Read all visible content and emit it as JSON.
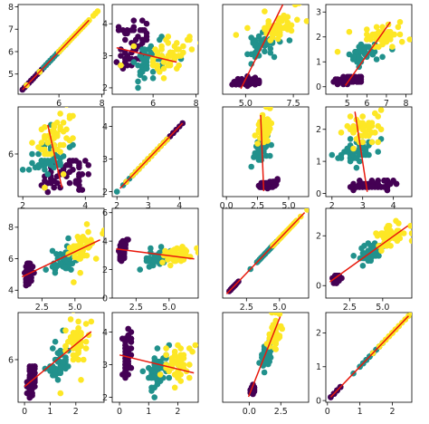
{
  "figure": {
    "class_colors": [
      "#440154",
      "#21918c",
      "#fde725"
    ],
    "fit_line_color": "#e8190c"
  },
  "chart_data": [
    {
      "type": "scatter",
      "row": 0,
      "col": 0,
      "x_var": 0,
      "y_var": 0,
      "xlim": [
        4.1,
        8.1
      ],
      "ylim": [
        4.1,
        8.1
      ],
      "xticks": [
        {
          "v": 6,
          "label": "6"
        },
        {
          "v": 8,
          "label": "8"
        }
      ],
      "yticks": [
        {
          "v": 5,
          "label": "5"
        },
        {
          "v": 6,
          "label": "6"
        },
        {
          "v": 7,
          "label": "7"
        },
        {
          "v": 8,
          "label": "8"
        }
      ],
      "fit": [
        [
          4.3,
          4.3
        ],
        [
          7.4,
          7.4
        ]
      ]
    },
    {
      "type": "scatter",
      "row": 0,
      "col": 1,
      "x_var": 0,
      "y_var": 1,
      "xlim": [
        4.1,
        8.1
      ],
      "ylim": [
        1.8,
        4.6
      ],
      "xticks": [
        {
          "v": 6,
          "label": "6"
        },
        {
          "v": 8,
          "label": "8"
        }
      ],
      "yticks": [
        {
          "v": 2,
          "label": "2"
        },
        {
          "v": 3,
          "label": "3"
        },
        {
          "v": 4,
          "label": "4"
        }
      ],
      "fit": [
        [
          4.3,
          3.25
        ],
        [
          7.1,
          2.8
        ]
      ]
    },
    {
      "type": "scatter",
      "row": 0,
      "col": 2,
      "x_var": 0,
      "y_var": 2,
      "xlim": [
        3.8,
        8.3
      ],
      "ylim": [
        0.6,
        7.1
      ],
      "xticks": [
        {
          "v": 5,
          "label": "5.0"
        },
        {
          "v": 7.5,
          "label": "7.5"
        }
      ],
      "yticks": [],
      "fit": [
        [
          4.75,
          1.0
        ],
        [
          6.95,
          7.1
        ]
      ]
    },
    {
      "type": "scatter",
      "row": 0,
      "col": 3,
      "x_var": 0,
      "y_var": 3,
      "xlim": [
        3.9,
        8.3
      ],
      "ylim": [
        -0.3,
        3.3
      ],
      "xticks": [
        {
          "v": 5,
          "label": "5"
        },
        {
          "v": 6,
          "label": "6"
        },
        {
          "v": 7,
          "label": "7"
        },
        {
          "v": 8,
          "label": "8"
        }
      ],
      "yticks": [
        {
          "v": 0,
          "label": "0"
        },
        {
          "v": 1,
          "label": "1"
        },
        {
          "v": 2,
          "label": "2"
        },
        {
          "v": 3,
          "label": "3"
        }
      ],
      "fit": [
        [
          4.9,
          0.05
        ],
        [
          7.2,
          2.6
        ]
      ]
    },
    {
      "type": "scatter",
      "row": 1,
      "col": 0,
      "x_var": 1,
      "y_var": 0,
      "xlim": [
        1.85,
        4.6
      ],
      "ylim": [
        4.1,
        8.1
      ],
      "xticks": [
        {
          "v": 2,
          "label": "2"
        },
        {
          "v": 4,
          "label": "4"
        }
      ],
      "yticks": [
        {
          "v": 6,
          "label": "6"
        }
      ],
      "fit": [
        [
          2.8,
          7.3
        ],
        [
          3.25,
          4.5
        ]
      ]
    },
    {
      "type": "scatter",
      "row": 1,
      "col": 1,
      "x_var": 1,
      "y_var": 1,
      "xlim": [
        1.85,
        4.6
      ],
      "ylim": [
        1.85,
        4.6
      ],
      "xticks": [
        {
          "v": 2,
          "label": "2"
        },
        {
          "v": 3,
          "label": "3"
        },
        {
          "v": 4,
          "label": "4"
        }
      ],
      "yticks": [
        {
          "v": 2,
          "label": "2"
        },
        {
          "v": 3,
          "label": "3"
        },
        {
          "v": 4,
          "label": "4"
        }
      ],
      "fit": [
        [
          2.1,
          2.1
        ],
        [
          4.1,
          4.1
        ]
      ]
    },
    {
      "type": "scatter",
      "row": 1,
      "col": 2,
      "x_var": 1,
      "y_var": 2,
      "xlim": [
        -0.3,
        6.6
      ],
      "ylim": [
        0.6,
        7.2
      ],
      "xticks": [
        {
          "v": 0,
          "label": "0.0"
        },
        {
          "v": 2.5,
          "label": "2.5"
        },
        {
          "v": 5,
          "label": "5.0"
        }
      ],
      "yticks": [],
      "fit": [
        [
          2.75,
          6.6
        ],
        [
          3.0,
          1.0
        ]
      ]
    },
    {
      "type": "scatter",
      "row": 1,
      "col": 3,
      "x_var": 1,
      "y_var": 3,
      "xlim": [
        1.8,
        4.6
      ],
      "ylim": [
        -0.1,
        2.7
      ],
      "xticks": [
        {
          "v": 2,
          "label": "2"
        },
        {
          "v": 3,
          "label": "3"
        },
        {
          "v": 4,
          "label": "4"
        }
      ],
      "yticks": [
        {
          "v": 0,
          "label": "0"
        },
        {
          "v": 1,
          "label": "1"
        },
        {
          "v": 2,
          "label": "2"
        }
      ],
      "fit": [
        [
          2.75,
          2.55
        ],
        [
          3.15,
          0.05
        ]
      ]
    },
    {
      "type": "scatter",
      "row": 2,
      "col": 0,
      "x_var": 2,
      "y_var": 0,
      "xlim": [
        0.7,
        7.2
      ],
      "ylim": [
        3.5,
        9.2
      ],
      "xticks": [
        {
          "v": 2.5,
          "label": "2.5"
        },
        {
          "v": 5,
          "label": "5.0"
        }
      ],
      "yticks": [
        {
          "v": 4,
          "label": "4"
        },
        {
          "v": 6,
          "label": "6"
        },
        {
          "v": 8,
          "label": "8"
        }
      ],
      "fit": [
        [
          1.0,
          4.85
        ],
        [
          6.9,
          7.2
        ]
      ]
    },
    {
      "type": "scatter",
      "row": 2,
      "col": 1,
      "x_var": 2,
      "y_var": 1,
      "xlim": [
        0.7,
        7.2
      ],
      "ylim": [
        0,
        6.3
      ],
      "xticks": [
        {
          "v": 2.5,
          "label": "2.5"
        },
        {
          "v": 5,
          "label": "5.0"
        }
      ],
      "yticks": [
        {
          "v": 0,
          "label": "0"
        },
        {
          "v": 2,
          "label": "2"
        },
        {
          "v": 4,
          "label": "4"
        },
        {
          "v": 6,
          "label": "6"
        }
      ],
      "fit": [
        [
          1.0,
          3.45
        ],
        [
          6.9,
          2.75
        ]
      ]
    },
    {
      "type": "scatter",
      "row": 2,
      "col": 2,
      "x_var": 2,
      "y_var": 2,
      "xlim": [
        0.7,
        7.2
      ],
      "ylim": [
        0.7,
        7.2
      ],
      "xticks": [
        {
          "v": 2.5,
          "label": "2.5"
        },
        {
          "v": 5,
          "label": "5.0"
        }
      ],
      "yticks": [],
      "fit": [
        [
          1.0,
          1.0
        ],
        [
          6.9,
          6.9
        ]
      ]
    },
    {
      "type": "scatter",
      "row": 2,
      "col": 3,
      "x_var": 2,
      "y_var": 3,
      "xlim": [
        0.7,
        7.2
      ],
      "ylim": [
        -0.5,
        3.1
      ],
      "xticks": [
        {
          "v": 2.5,
          "label": "2.5"
        },
        {
          "v": 5,
          "label": "5.0"
        }
      ],
      "yticks": [
        {
          "v": 0,
          "label": "0"
        },
        {
          "v": 2,
          "label": "2"
        }
      ],
      "fit": [
        [
          1.0,
          0.15
        ],
        [
          6.9,
          2.4
        ]
      ]
    },
    {
      "type": "scatter",
      "row": 3,
      "col": 0,
      "x_var": 3,
      "y_var": 0,
      "xlim": [
        -0.25,
        3.1
      ],
      "ylim": [
        4.1,
        8.1
      ],
      "xticks": [
        {
          "v": 0,
          "label": "0"
        },
        {
          "v": 1,
          "label": "1"
        },
        {
          "v": 2,
          "label": "2"
        }
      ],
      "yticks": [
        {
          "v": 6,
          "label": "6"
        }
      ],
      "fit": [
        [
          0.0,
          4.8
        ],
        [
          2.6,
          7.25
        ]
      ]
    },
    {
      "type": "scatter",
      "row": 3,
      "col": 1,
      "x_var": 3,
      "y_var": 1,
      "xlim": [
        -0.25,
        2.7
      ],
      "ylim": [
        1.85,
        4.6
      ],
      "xticks": [
        {
          "v": 0,
          "label": "0"
        },
        {
          "v": 1,
          "label": "1"
        },
        {
          "v": 2,
          "label": "2"
        }
      ],
      "yticks": [
        {
          "v": 2,
          "label": "2"
        },
        {
          "v": 3,
          "label": "3"
        },
        {
          "v": 4,
          "label": "4"
        }
      ],
      "fit": [
        [
          0.0,
          3.3
        ],
        [
          2.55,
          2.75
        ]
      ]
    },
    {
      "type": "scatter",
      "row": 3,
      "col": 2,
      "x_var": 3,
      "y_var": 2,
      "xlim": [
        -2.1,
        4.7
      ],
      "ylim": [
        0.6,
        7.2
      ],
      "xticks": [
        {
          "v": 0,
          "label": "0.0"
        },
        {
          "v": 2.5,
          "label": "2.5"
        }
      ],
      "yticks": [],
      "fit": [
        [
          -0.05,
          1.0
        ],
        [
          2.45,
          6.9
        ]
      ]
    },
    {
      "type": "scatter",
      "row": 3,
      "col": 3,
      "x_var": 3,
      "y_var": 3,
      "xlim": [
        -0.05,
        2.6
      ],
      "ylim": [
        -0.05,
        2.6
      ],
      "xticks": [
        {
          "v": 0,
          "label": "0"
        },
        {
          "v": 1,
          "label": "1"
        },
        {
          "v": 2,
          "label": "2"
        }
      ],
      "yticks": [
        {
          "v": 0,
          "label": "0"
        },
        {
          "v": 1,
          "label": "1"
        },
        {
          "v": 2,
          "label": "2"
        }
      ],
      "fit": [
        [
          0.1,
          0.1
        ],
        [
          2.5,
          2.5
        ]
      ]
    }
  ]
}
